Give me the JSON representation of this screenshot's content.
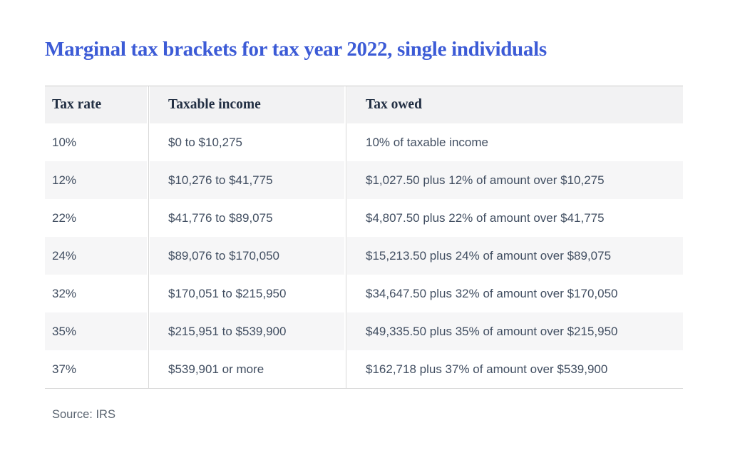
{
  "page": {
    "title": "Marginal tax brackets for tax year 2022, single individuals",
    "source_note": "Source: IRS"
  },
  "colors": {
    "title_blue": "#3c5bd6",
    "header_text": "#222f43",
    "body_text": "#414e61",
    "header_row_bg": "#f2f2f3",
    "alt_row_bg": "#f6f6f7",
    "rule_gray": "#d9d9d9"
  },
  "chart_data": {
    "type": "table",
    "title": "Marginal tax brackets for tax year 2022, single individuals",
    "columns": [
      "Tax rate",
      "Taxable income",
      "Tax owed"
    ],
    "rows": [
      [
        "10%",
        "$0 to $10,275",
        "10% of taxable income"
      ],
      [
        "12%",
        "$10,276 to $41,775",
        "$1,027.50 plus 12% of amount over $10,275"
      ],
      [
        "22%",
        "$41,776 to $89,075",
        "$4,807.50 plus 22% of amount over $41,775"
      ],
      [
        "24%",
        "$89,076 to $170,050",
        "$15,213.50 plus 24% of amount over $89,075"
      ],
      [
        "32%",
        "$170,051 to $215,950",
        "$34,647.50 plus 32% of amount over $170,050"
      ],
      [
        "35%",
        "$215,951 to $539,900",
        "$49,335.50 plus 35% of amount over $215,950"
      ],
      [
        "37%",
        "$539,901 or more",
        "$162,718 plus 37% of amount over $539,900"
      ]
    ],
    "source": "Source: IRS",
    "layout": {
      "alternating_rows": true,
      "column_dividers": true,
      "grid": false
    }
  }
}
